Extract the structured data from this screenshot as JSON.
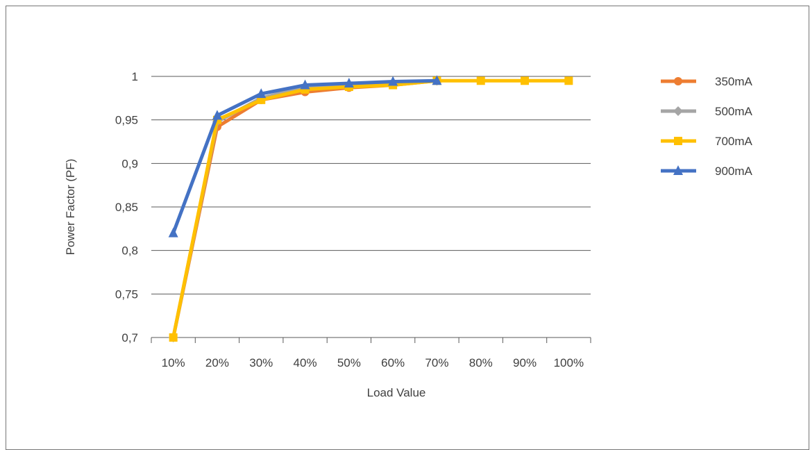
{
  "chart_data": {
    "type": "line",
    "title": "",
    "xlabel": "Load Value",
    "ylabel": "Power Factor (PF)",
    "categories": [
      "10%",
      "20%",
      "30%",
      "40%",
      "50%",
      "60%",
      "70%",
      "80%",
      "90%",
      "100%"
    ],
    "ylim": [
      0.7,
      1.0
    ],
    "yticks": [
      "0,7",
      "0,75",
      "0,8",
      "0,85",
      "0,9",
      "0,95",
      "1"
    ],
    "ytick_values": [
      0.7,
      0.75,
      0.8,
      0.85,
      0.9,
      0.95,
      1.0
    ],
    "grid": true,
    "legend_position": "right",
    "series": [
      {
        "name": "350mA",
        "color": "#ED7D31",
        "marker": "circle",
        "values": [
          0.7,
          0.942,
          0.973,
          0.982,
          0.987,
          0.99,
          0.995,
          null,
          null,
          null
        ]
      },
      {
        "name": "500mA",
        "color": "#A5A5A5",
        "marker": "diamond",
        "values": [
          0.7,
          0.948,
          0.975,
          0.988,
          0.99,
          0.992,
          0.995,
          null,
          null,
          null
        ]
      },
      {
        "name": "700mA",
        "color": "#FFC000",
        "marker": "square",
        "values": [
          0.7,
          0.95,
          0.973,
          0.985,
          0.988,
          0.99,
          0.995,
          0.995,
          0.995,
          0.995
        ]
      },
      {
        "name": "900mA",
        "color": "#4472C4",
        "marker": "triangle",
        "values": [
          0.82,
          0.955,
          0.98,
          0.99,
          0.992,
          0.994,
          0.995,
          null,
          null,
          null
        ]
      }
    ]
  }
}
